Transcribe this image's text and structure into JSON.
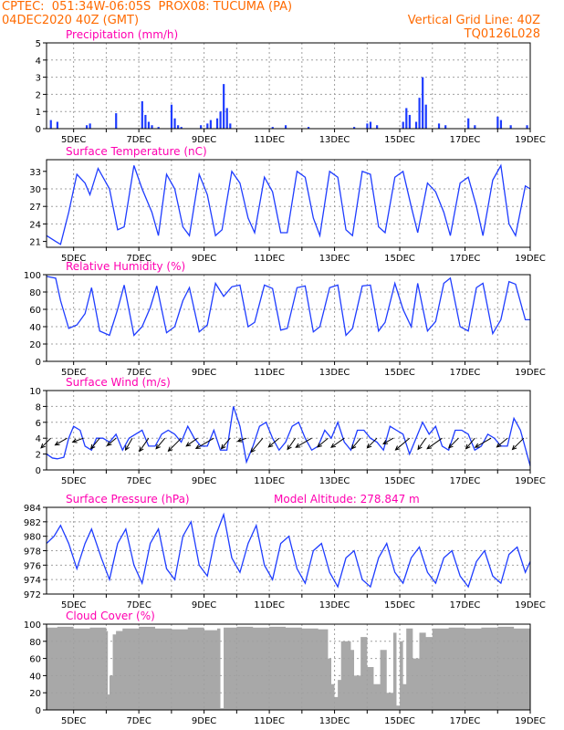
{
  "header": {
    "line1": "CPTEC:  051:34W-06:05S  PROX08: TUCUMA (PA)",
    "line2": "04DEC2020 40Z (GMT)",
    "grid_note": "Vertical Grid Line: 40Z",
    "run_code": "TQ0126L028",
    "color": "#ff6a00"
  },
  "colors": {
    "title": "#ff00b0",
    "precip": "#1e3cff",
    "line": "#1e3cff",
    "arrow": "#000000",
    "cloud": "#a8a8a8",
    "grid": "#a0a0a0"
  },
  "chart_data": [
    {
      "type": "bar",
      "title": "Precipitation (mm/h)",
      "ylim": [
        0,
        5
      ],
      "yticks": [
        0,
        1,
        2,
        3,
        4,
        5
      ],
      "x_ticks": [
        "5DEC",
        "7DEC",
        "9DEC",
        "11DEC",
        "13DEC",
        "15DEC",
        "17DEC",
        "19DEC"
      ],
      "x_day_start": 4.17,
      "x_day_end": 19.0,
      "series": [
        {
          "x": [
            4.3,
            4.5,
            5.4,
            5.5,
            6.3,
            7.1,
            7.2,
            7.3,
            7.4,
            7.6,
            8.0,
            8.1,
            8.2,
            8.3,
            8.9,
            9.1,
            9.2,
            9.4,
            9.5,
            9.6,
            9.7,
            9.8,
            11.1,
            11.5,
            12.2,
            13.6,
            14.0,
            14.1,
            14.3,
            15.1,
            15.2,
            15.3,
            15.5,
            15.6,
            15.7,
            15.8,
            16.2,
            16.4,
            17.1,
            17.3,
            18.0,
            18.1,
            18.4,
            18.9
          ],
          "values": [
            0.5,
            0.4,
            0.2,
            0.3,
            0.9,
            1.6,
            0.8,
            0.4,
            0.2,
            0.1,
            1.4,
            0.6,
            0.2,
            0.1,
            0.2,
            0.3,
            0.5,
            0.6,
            1.0,
            2.6,
            1.2,
            0.3,
            0.1,
            0.2,
            0.1,
            0.1,
            0.3,
            0.4,
            0.2,
            0.4,
            1.2,
            0.8,
            0.4,
            1.8,
            3.0,
            1.4,
            0.3,
            0.2,
            0.6,
            0.2,
            0.7,
            0.5,
            0.2,
            0.2
          ]
        }
      ]
    },
    {
      "type": "line",
      "title": "Surface Temperature (nC)",
      "ylim": [
        20,
        35
      ],
      "yticks": [
        21,
        24,
        27,
        30,
        33
      ],
      "x_ticks": [
        "5DEC",
        "7DEC",
        "9DEC",
        "11DEC",
        "13DEC",
        "15DEC",
        "17DEC",
        "19DEC"
      ],
      "series": [
        {
          "x": [
            4.17,
            4.45,
            4.6,
            4.85,
            5.1,
            5.35,
            5.5,
            5.75,
            6.1,
            6.35,
            6.55,
            6.85,
            7.1,
            7.4,
            7.6,
            7.85,
            8.1,
            8.35,
            8.55,
            8.85,
            9.1,
            9.35,
            9.55,
            9.85,
            10.1,
            10.35,
            10.55,
            10.85,
            11.1,
            11.35,
            11.55,
            11.85,
            12.1,
            12.35,
            12.55,
            12.85,
            13.1,
            13.35,
            13.55,
            13.85,
            14.1,
            14.35,
            14.55,
            14.85,
            15.1,
            15.35,
            15.55,
            15.85,
            16.1,
            16.35,
            16.55,
            16.85,
            17.1,
            17.35,
            17.55,
            17.85,
            18.1,
            18.35,
            18.55,
            18.85,
            19.0
          ],
          "values": [
            22,
            21,
            20.5,
            26,
            32.5,
            31,
            29,
            33.5,
            30,
            23,
            23.5,
            34,
            30,
            26,
            22,
            32.5,
            30,
            23.5,
            22,
            32.5,
            29,
            22,
            23,
            33,
            31,
            25,
            22.5,
            32,
            29.5,
            22.5,
            22.5,
            33,
            32,
            25,
            22,
            33,
            32,
            23,
            22,
            33,
            32.5,
            23.5,
            22.5,
            32,
            33,
            27,
            22.5,
            31,
            29.5,
            26,
            22,
            31,
            32,
            27,
            22,
            31.5,
            34,
            24,
            22,
            30.5,
            30
          ]
        }
      ]
    },
    {
      "type": "line",
      "title": "Relative Humidity (%)",
      "ylim": [
        0,
        100
      ],
      "yticks": [
        0,
        20,
        40,
        60,
        80,
        100
      ],
      "x_ticks": [
        "5DEC",
        "7DEC",
        "9DEC",
        "11DEC",
        "13DEC",
        "15DEC",
        "17DEC",
        "19DEC"
      ],
      "series": [
        {
          "x": [
            4.17,
            4.45,
            4.6,
            4.85,
            5.1,
            5.35,
            5.55,
            5.8,
            6.1,
            6.35,
            6.55,
            6.85,
            7.1,
            7.35,
            7.55,
            7.85,
            8.1,
            8.35,
            8.55,
            8.85,
            9.1,
            9.35,
            9.6,
            9.85,
            10.1,
            10.35,
            10.55,
            10.85,
            11.1,
            11.35,
            11.55,
            11.85,
            12.1,
            12.35,
            12.55,
            12.85,
            13.1,
            13.35,
            13.55,
            13.85,
            14.1,
            14.35,
            14.55,
            14.85,
            15.1,
            15.35,
            15.55,
            15.85,
            16.1,
            16.35,
            16.55,
            16.85,
            17.1,
            17.35,
            17.55,
            17.85,
            18.1,
            18.35,
            18.55,
            18.85,
            19.0
          ],
          "values": [
            98,
            96,
            70,
            38,
            42,
            55,
            85,
            35,
            30,
            60,
            88,
            30,
            40,
            62,
            87,
            33,
            40,
            70,
            85,
            34,
            42,
            90,
            75,
            86,
            88,
            40,
            45,
            88,
            84,
            36,
            38,
            85,
            87,
            34,
            40,
            85,
            88,
            30,
            38,
            87,
            88,
            35,
            45,
            90,
            60,
            40,
            90,
            35,
            46,
            90,
            96,
            40,
            35,
            85,
            90,
            32,
            48,
            92,
            89,
            48,
            48
          ]
        }
      ]
    },
    {
      "type": "line",
      "title": "Surface Wind (m/s)",
      "ylim": [
        0,
        10
      ],
      "yticks": [
        0,
        2,
        4,
        6,
        8,
        10
      ],
      "x_ticks": [
        "5DEC",
        "7DEC",
        "9DEC",
        "11DEC",
        "13DEC",
        "15DEC",
        "17DEC",
        "19DEC"
      ],
      "series": [
        {
          "x": [
            4.17,
            4.35,
            4.5,
            4.7,
            4.85,
            5.0,
            5.2,
            5.35,
            5.55,
            5.7,
            5.9,
            6.1,
            6.3,
            6.5,
            6.7,
            6.9,
            7.1,
            7.3,
            7.5,
            7.7,
            7.9,
            8.1,
            8.3,
            8.5,
            8.7,
            8.9,
            9.1,
            9.3,
            9.5,
            9.7,
            9.9,
            10.1,
            10.3,
            10.5,
            10.7,
            10.9,
            11.1,
            11.3,
            11.5,
            11.7,
            11.9,
            12.1,
            12.3,
            12.5,
            12.7,
            12.9,
            13.1,
            13.3,
            13.5,
            13.7,
            13.9,
            14.1,
            14.3,
            14.5,
            14.7,
            14.9,
            15.1,
            15.3,
            15.5,
            15.7,
            15.9,
            16.1,
            16.3,
            16.5,
            16.7,
            16.9,
            17.1,
            17.3,
            17.5,
            17.7,
            17.9,
            18.1,
            18.3,
            18.5,
            18.7,
            18.9,
            19.0
          ],
          "values": [
            2,
            1.5,
            1.4,
            1.6,
            4,
            5.5,
            5,
            3,
            2.5,
            4,
            4,
            3.5,
            4.5,
            2.5,
            4,
            4.5,
            5,
            3,
            3,
            4.5,
            5,
            4.5,
            3.5,
            5.5,
            4,
            3,
            3,
            5,
            2.5,
            2.5,
            8,
            5.5,
            1,
            3,
            5.5,
            6,
            4,
            2.5,
            3.5,
            5.5,
            6,
            4,
            2.5,
            3,
            5,
            4,
            6,
            3.5,
            2.5,
            5,
            5,
            4,
            3.5,
            2.5,
            5.5,
            5,
            4.5,
            2,
            4,
            6,
            4.5,
            5.5,
            3,
            2.5,
            5,
            5,
            4.5,
            2.5,
            3,
            4.5,
            4,
            3,
            3,
            6.5,
            5,
            2,
            0.5
          ]
        }
      ],
      "arrows": {
        "x": [
          4.3,
          4.8,
          5.3,
          5.8,
          6.3,
          6.8,
          7.3,
          7.8,
          8.3,
          8.8,
          9.3,
          9.8,
          10.3,
          10.8,
          11.3,
          11.8,
          12.3,
          12.8,
          13.3,
          13.8,
          14.3,
          14.8,
          15.3,
          15.8,
          16.3,
          16.8,
          17.3,
          17.8,
          18.3,
          18.8
        ],
        "speed": [
          3,
          3,
          2.5,
          3,
          2.5,
          3,
          3.5,
          3,
          4,
          3,
          4.5,
          3,
          2,
          4,
          3,
          3,
          4,
          3,
          3.5,
          3,
          3,
          2.5,
          4,
          3,
          4,
          3,
          3,
          4,
          3,
          3.5
        ],
        "dir_deg": [
          225,
          210,
          200,
          230,
          220,
          240,
          235,
          230,
          225,
          215,
          210,
          230,
          200,
          230,
          220,
          235,
          210,
          220,
          215,
          230,
          225,
          210,
          220,
          235,
          215,
          225,
          230,
          210,
          220,
          225
        ]
      }
    },
    {
      "type": "line",
      "title": "Surface Pressure (hPa)",
      "annotation": "Model Altitude: 278.847 m",
      "ylim": [
        972,
        984
      ],
      "yticks": [
        972,
        974,
        976,
        978,
        980,
        982,
        984
      ],
      "x_ticks": [
        "5DEC",
        "7DEC",
        "9DEC",
        "11DEC",
        "13DEC",
        "15DEC",
        "17DEC",
        "19DEC"
      ],
      "series": [
        {
          "x": [
            4.17,
            4.4,
            4.6,
            4.85,
            5.1,
            5.35,
            5.55,
            5.85,
            6.1,
            6.35,
            6.6,
            6.85,
            7.1,
            7.35,
            7.6,
            7.85,
            8.1,
            8.35,
            8.6,
            8.85,
            9.1,
            9.35,
            9.6,
            9.85,
            10.1,
            10.35,
            10.6,
            10.85,
            11.1,
            11.35,
            11.6,
            11.85,
            12.1,
            12.35,
            12.6,
            12.85,
            13.1,
            13.35,
            13.6,
            13.85,
            14.1,
            14.35,
            14.6,
            14.85,
            15.1,
            15.35,
            15.6,
            15.85,
            16.1,
            16.35,
            16.6,
            16.85,
            17.1,
            17.35,
            17.6,
            17.85,
            18.1,
            18.35,
            18.6,
            18.85,
            19.0
          ],
          "values": [
            979,
            980,
            981.5,
            979,
            975.5,
            979,
            981,
            977,
            974,
            979,
            981,
            976,
            973.5,
            979,
            981,
            975.5,
            974,
            980,
            982,
            976,
            974.5,
            980,
            983,
            977,
            975,
            979,
            981.5,
            976,
            974,
            979,
            980,
            975.5,
            973.5,
            978,
            979,
            975,
            973,
            977,
            978,
            974,
            973,
            977,
            979,
            975,
            973.5,
            977,
            978.5,
            975,
            973.5,
            977,
            978,
            974.5,
            973,
            976.5,
            978,
            974.5,
            973.5,
            977.5,
            978.5,
            975,
            976.5
          ]
        }
      ]
    },
    {
      "type": "area",
      "title": "Cloud Cover (%)",
      "ylim": [
        0,
        100
      ],
      "yticks": [
        0,
        20,
        40,
        60,
        80,
        100
      ],
      "x_ticks": [
        "5DEC",
        "7DEC",
        "9DEC",
        "11DEC",
        "13DEC",
        "15DEC",
        "17DEC",
        "19DEC"
      ],
      "series": [
        {
          "x": [
            4.17,
            4.5,
            5.0,
            5.5,
            6.0,
            6.05,
            6.1,
            6.2,
            6.3,
            6.5,
            7.0,
            7.5,
            8.0,
            8.5,
            9.0,
            9.4,
            9.5,
            9.6,
            10.0,
            10.5,
            11.0,
            11.5,
            12.0,
            12.5,
            12.8,
            12.9,
            13.0,
            13.1,
            13.2,
            13.5,
            13.6,
            13.8,
            14.0,
            14.2,
            14.4,
            14.6,
            14.8,
            14.9,
            15.0,
            15.1,
            15.2,
            15.4,
            15.6,
            15.8,
            16.0,
            16.5,
            17.0,
            17.5,
            18.0,
            18.5,
            19.0
          ],
          "values": [
            96,
            97,
            95,
            96,
            92,
            18,
            40,
            88,
            92,
            95,
            97,
            95,
            94,
            96,
            93,
            95,
            2,
            96,
            97,
            96,
            97,
            96,
            95,
            94,
            60,
            30,
            15,
            35,
            80,
            70,
            40,
            85,
            50,
            30,
            70,
            20,
            90,
            5,
            80,
            30,
            95,
            60,
            90,
            85,
            95,
            96,
            95,
            96,
            97,
            95,
            96
          ]
        }
      ]
    }
  ]
}
